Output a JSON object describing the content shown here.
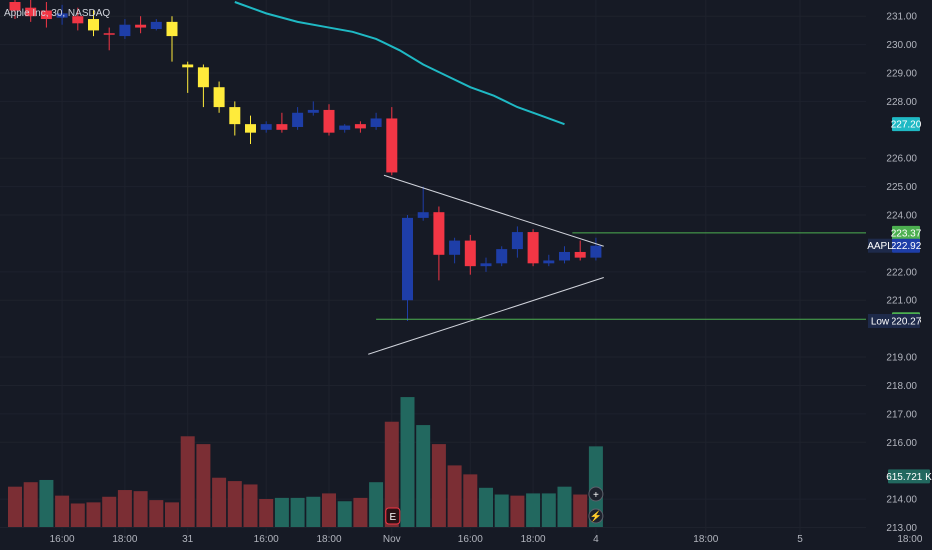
{
  "header": {
    "title": "Apple Inc, 30, NASDAQ"
  },
  "colors": {
    "background": "#161a25",
    "up_candle": "#1e3ea8",
    "down_candle": "#f23645",
    "highlight_candle": "#ffeb3b",
    "moving_average": "#1fb9c4",
    "volume_up": "#22685f",
    "volume_down": "#7b2e34",
    "level_line": "#4caf50",
    "triangle_lines": "#d1d4dc"
  },
  "price_axis": {
    "ticks": [
      "231.00",
      "230.00",
      "229.00",
      "228.00",
      "226.00",
      "225.00",
      "224.00",
      "222.00",
      "221.00",
      "219.00",
      "218.00",
      "217.00",
      "216.00",
      "214.00",
      "213.00"
    ],
    "tags": [
      {
        "label": "227.20",
        "value": 227.2,
        "color": "#1fb9c4",
        "text_color": "#131722"
      },
      {
        "label": "223.37",
        "value": 223.37,
        "color": "#4caf50",
        "text_color": "#131722"
      },
      {
        "label": "222.92",
        "value": 222.92,
        "color": "#1e3ea8",
        "text_color": "#ffffff",
        "prefix": "AAPL"
      },
      {
        "label": "220.33",
        "value": 220.33,
        "color": "#4caf50",
        "text_color": "#131722"
      },
      {
        "label": "220.27",
        "value": 220.27,
        "color": "#1e2a4a",
        "text_color": "#ffffff",
        "prefix": "Low"
      },
      {
        "label": "615.721 K",
        "value": 214.8,
        "color": "#22685f",
        "text_color": "#ffffff"
      }
    ]
  },
  "time_axis": {
    "labels": [
      {
        "label": "16:00",
        "index": 3
      },
      {
        "label": "18:00",
        "index": 7
      },
      {
        "label": "31",
        "index": 11
      },
      {
        "label": "16:00",
        "index": 16
      },
      {
        "label": "18:00",
        "index": 20
      },
      {
        "label": "Nov",
        "index": 24
      },
      {
        "label": "16:00",
        "index": 29
      },
      {
        "label": "18:00",
        "index": 33
      },
      {
        "label": "4",
        "index": 37
      },
      {
        "label": "18:00",
        "index": 44
      },
      {
        "label": "5",
        "index": 50
      },
      {
        "label": "18:00",
        "index": 57
      }
    ]
  },
  "chart_data": {
    "type": "candlestick",
    "symbol": "AAPL",
    "interval": "30",
    "ylim": [
      212.7,
      231.5
    ],
    "candles": [
      {
        "o": 231.5,
        "h": 231.8,
        "c": 231.2,
        "l": 230.9,
        "color": "down"
      },
      {
        "o": 231.3,
        "h": 231.6,
        "c": 231.0,
        "l": 230.8,
        "color": "down"
      },
      {
        "o": 231.2,
        "h": 231.5,
        "c": 230.9,
        "l": 230.6,
        "color": "down"
      },
      {
        "o": 231.1,
        "h": 231.4,
        "c": 230.95,
        "l": 230.7,
        "color": "up"
      },
      {
        "o": 231.0,
        "h": 231.3,
        "c": 230.75,
        "l": 230.5,
        "color": "down"
      },
      {
        "o": 230.9,
        "h": 231.2,
        "c": 230.5,
        "l": 230.3,
        "color": "highlight"
      },
      {
        "o": 230.4,
        "h": 230.6,
        "c": 230.35,
        "l": 229.8,
        "color": "down"
      },
      {
        "o": 230.3,
        "h": 230.9,
        "c": 230.7,
        "l": 230.2,
        "color": "up"
      },
      {
        "o": 230.7,
        "h": 231.0,
        "c": 230.6,
        "l": 230.4,
        "color": "down"
      },
      {
        "o": 230.55,
        "h": 230.9,
        "c": 230.8,
        "l": 230.5,
        "color": "up"
      },
      {
        "o": 230.8,
        "h": 231.0,
        "c": 230.3,
        "l": 229.4,
        "color": "highlight"
      },
      {
        "o": 229.3,
        "h": 229.4,
        "c": 229.2,
        "l": 228.3,
        "color": "highlight"
      },
      {
        "o": 229.2,
        "h": 229.3,
        "c": 228.5,
        "l": 227.8,
        "color": "highlight"
      },
      {
        "o": 228.5,
        "h": 228.7,
        "c": 227.8,
        "l": 227.6,
        "color": "highlight"
      },
      {
        "o": 227.8,
        "h": 228.0,
        "c": 227.2,
        "l": 226.8,
        "color": "highlight"
      },
      {
        "o": 227.2,
        "h": 227.5,
        "c": 226.9,
        "l": 226.5,
        "color": "highlight"
      },
      {
        "o": 227.0,
        "h": 227.3,
        "c": 227.2,
        "l": 226.9,
        "color": "up"
      },
      {
        "o": 227.2,
        "h": 227.6,
        "c": 227.0,
        "l": 226.9,
        "color": "down"
      },
      {
        "o": 227.1,
        "h": 227.8,
        "c": 227.6,
        "l": 227.0,
        "color": "up"
      },
      {
        "o": 227.6,
        "h": 228.0,
        "c": 227.7,
        "l": 227.5,
        "color": "up"
      },
      {
        "o": 227.7,
        "h": 227.9,
        "c": 226.9,
        "l": 226.8,
        "color": "down"
      },
      {
        "o": 227.0,
        "h": 227.2,
        "c": 227.15,
        "l": 226.9,
        "color": "up"
      },
      {
        "o": 227.2,
        "h": 227.3,
        "c": 227.05,
        "l": 226.9,
        "color": "down"
      },
      {
        "o": 227.1,
        "h": 227.6,
        "c": 227.4,
        "l": 227.0,
        "color": "up"
      },
      {
        "o": 227.4,
        "h": 227.8,
        "c": 225.5,
        "l": 225.4,
        "color": "down"
      },
      {
        "o": 221.0,
        "h": 224.0,
        "c": 223.9,
        "l": 220.27,
        "color": "up"
      },
      {
        "o": 223.9,
        "h": 225.0,
        "c": 224.1,
        "l": 223.8,
        "color": "up"
      },
      {
        "o": 224.1,
        "h": 224.3,
        "c": 222.6,
        "l": 221.7,
        "color": "down"
      },
      {
        "o": 222.6,
        "h": 223.2,
        "c": 223.1,
        "l": 222.3,
        "color": "up"
      },
      {
        "o": 223.1,
        "h": 223.3,
        "c": 222.2,
        "l": 221.9,
        "color": "down"
      },
      {
        "o": 222.2,
        "h": 222.5,
        "c": 222.3,
        "l": 222.0,
        "color": "up"
      },
      {
        "o": 222.3,
        "h": 222.9,
        "c": 222.8,
        "l": 222.2,
        "color": "up"
      },
      {
        "o": 222.8,
        "h": 223.6,
        "c": 223.4,
        "l": 222.5,
        "color": "up"
      },
      {
        "o": 223.4,
        "h": 223.5,
        "c": 222.3,
        "l": 222.2,
        "color": "down"
      },
      {
        "o": 222.3,
        "h": 222.6,
        "c": 222.4,
        "l": 222.2,
        "color": "up"
      },
      {
        "o": 222.4,
        "h": 222.9,
        "c": 222.7,
        "l": 222.3,
        "color": "up"
      },
      {
        "o": 222.7,
        "h": 223.1,
        "c": 222.5,
        "l": 222.4,
        "color": "down"
      },
      {
        "o": 222.5,
        "h": 223.2,
        "c": 222.92,
        "l": 222.4,
        "color": "up"
      }
    ],
    "volume": [
      {
        "v": 0.36,
        "color": "down"
      },
      {
        "v": 0.4,
        "color": "down"
      },
      {
        "v": 0.42,
        "color": "up"
      },
      {
        "v": 0.28,
        "color": "down"
      },
      {
        "v": 0.21,
        "color": "down"
      },
      {
        "v": 0.22,
        "color": "down"
      },
      {
        "v": 0.27,
        "color": "down"
      },
      {
        "v": 0.33,
        "color": "down"
      },
      {
        "v": 0.32,
        "color": "down"
      },
      {
        "v": 0.24,
        "color": "down"
      },
      {
        "v": 0.22,
        "color": "down"
      },
      {
        "v": 0.81,
        "color": "down"
      },
      {
        "v": 0.74,
        "color": "down"
      },
      {
        "v": 0.44,
        "color": "down"
      },
      {
        "v": 0.41,
        "color": "down"
      },
      {
        "v": 0.38,
        "color": "down"
      },
      {
        "v": 0.25,
        "color": "down"
      },
      {
        "v": 0.26,
        "color": "up"
      },
      {
        "v": 0.26,
        "color": "up"
      },
      {
        "v": 0.27,
        "color": "up"
      },
      {
        "v": 0.3,
        "color": "down"
      },
      {
        "v": 0.23,
        "color": "up"
      },
      {
        "v": 0.26,
        "color": "down"
      },
      {
        "v": 0.4,
        "color": "up"
      },
      {
        "v": 0.94,
        "color": "down"
      },
      {
        "v": 1.16,
        "color": "up"
      },
      {
        "v": 0.91,
        "color": "up"
      },
      {
        "v": 0.74,
        "color": "down"
      },
      {
        "v": 0.55,
        "color": "down"
      },
      {
        "v": 0.47,
        "color": "down"
      },
      {
        "v": 0.35,
        "color": "up"
      },
      {
        "v": 0.29,
        "color": "up"
      },
      {
        "v": 0.28,
        "color": "down"
      },
      {
        "v": 0.3,
        "color": "up"
      },
      {
        "v": 0.3,
        "color": "up"
      },
      {
        "v": 0.36,
        "color": "up"
      },
      {
        "v": 0.29,
        "color": "down"
      },
      {
        "v": 0.72,
        "color": "up"
      }
    ],
    "moving_average": [
      {
        "i": 14.0,
        "v": 231.5
      },
      {
        "i": 16.0,
        "v": 231.1
      },
      {
        "i": 18.0,
        "v": 230.8
      },
      {
        "i": 20.0,
        "v": 230.6
      },
      {
        "i": 21.5,
        "v": 230.45
      },
      {
        "i": 23.0,
        "v": 230.2
      },
      {
        "i": 24.5,
        "v": 229.8
      },
      {
        "i": 26.0,
        "v": 229.3
      },
      {
        "i": 27.5,
        "v": 228.9
      },
      {
        "i": 29.0,
        "v": 228.5
      },
      {
        "i": 30.5,
        "v": 228.2
      },
      {
        "i": 32.0,
        "v": 227.8
      },
      {
        "i": 33.5,
        "v": 227.5
      },
      {
        "i": 35.0,
        "v": 227.2
      }
    ],
    "triangle": {
      "upper": [
        {
          "i": 23.5,
          "v": 225.4
        },
        {
          "i": 37.5,
          "v": 222.9
        }
      ],
      "lower": [
        {
          "i": 22.5,
          "v": 219.1
        },
        {
          "i": 37.5,
          "v": 221.8
        }
      ]
    },
    "levels": [
      {
        "value": 223.37,
        "from_index": 35.5
      },
      {
        "value": 220.33,
        "from_index": 23.0
      }
    ]
  },
  "markers": {
    "earnings": "E",
    "plus": "+",
    "bolt": "⚡"
  }
}
